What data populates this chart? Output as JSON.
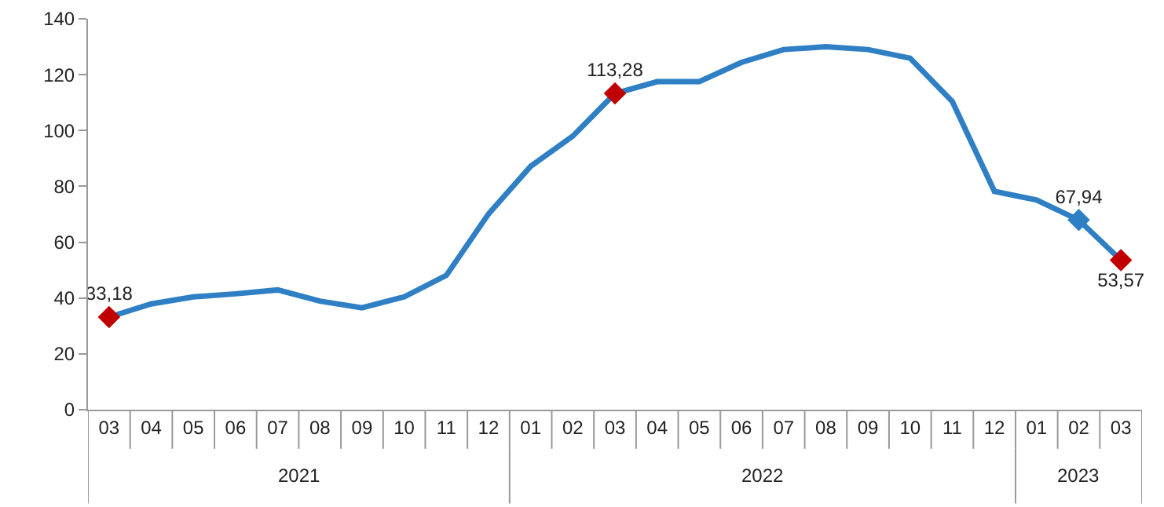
{
  "chart_data": {
    "type": "line",
    "categories": [
      "03",
      "04",
      "05",
      "06",
      "07",
      "08",
      "09",
      "10",
      "11",
      "12",
      "01",
      "02",
      "03",
      "04",
      "05",
      "06",
      "07",
      "08",
      "09",
      "10",
      "11",
      "12",
      "01",
      "02",
      "03"
    ],
    "series": [
      {
        "color": "#2e7fc4",
        "marker": "none",
        "values": [
          33.18,
          37.9,
          40.4,
          41.5,
          42.9,
          38.9,
          36.5,
          40.4,
          48.1,
          70.1,
          87.2,
          98.0,
          113.28,
          117.5,
          117.5,
          124.4,
          129.0,
          130.0,
          129.0,
          125.9,
          110.4,
          78.2,
          75.1,
          67.94,
          53.57
        ]
      },
      {
        "type": "scatter",
        "marker": "diamond",
        "colors": [
          "#c00000",
          null,
          null,
          null,
          null,
          null,
          null,
          null,
          null,
          null,
          null,
          null,
          "#c00000",
          null,
          null,
          null,
          null,
          null,
          null,
          null,
          null,
          null,
          null,
          "#2e7fc4",
          "#c00000"
        ],
        "values": [
          33.18,
          null,
          null,
          null,
          null,
          null,
          null,
          null,
          null,
          null,
          null,
          null,
          113.28,
          null,
          null,
          null,
          null,
          null,
          null,
          null,
          null,
          null,
          null,
          67.94,
          53.57
        ],
        "value_labels": [
          "33,18",
          null,
          null,
          null,
          null,
          null,
          null,
          null,
          null,
          null,
          null,
          null,
          "113,28",
          null,
          null,
          null,
          null,
          null,
          null,
          null,
          null,
          null,
          null,
          "67,94",
          "53,57"
        ]
      }
    ],
    "annotations": [
      "2021",
      "2022",
      "2023"
    ],
    "ylim": [
      0,
      140
    ],
    "yticks": [
      0,
      20,
      40,
      60,
      80,
      100,
      120,
      140
    ],
    "grid": false
  }
}
